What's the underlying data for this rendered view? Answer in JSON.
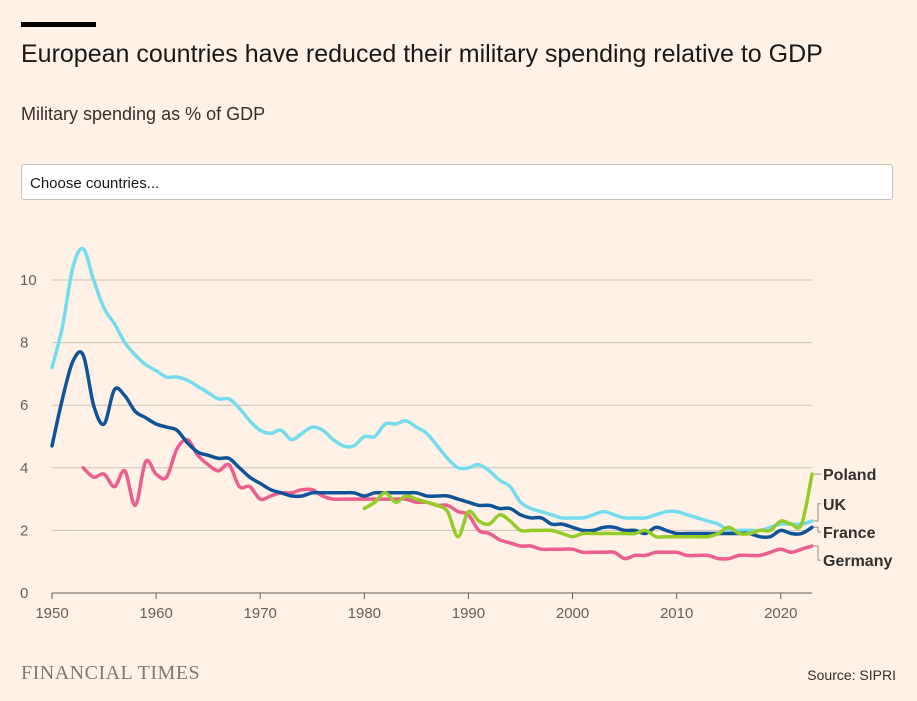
{
  "header": {
    "title": "European countries have reduced their military spending relative to GDP",
    "subtitle": "Military spending as % of GDP"
  },
  "controls": {
    "select_placeholder": "Choose countries..."
  },
  "footer": {
    "brand": "FINANCIAL TIMES",
    "source": "Source: SIPRI"
  },
  "colors": {
    "UK": "#73dcef",
    "France": "#0f5499",
    "Germany": "#eb5e8d",
    "Poland": "#96cc28",
    "background": "#fff1e5",
    "grid": "#ccc1b7"
  },
  "chart_data": {
    "type": "line",
    "xlim": [
      1950,
      2023
    ],
    "ylim": [
      0,
      11
    ],
    "x_ticks": [
      "1950",
      "1960",
      "1970",
      "1980",
      "1990",
      "2000",
      "2010",
      "2020"
    ],
    "y_ticks": [
      "0",
      "2",
      "4",
      "6",
      "8",
      "10"
    ],
    "grid": "horizontal",
    "series": [
      {
        "name": "UK",
        "x": [
          1950,
          1951,
          1952,
          1953,
          1954,
          1955,
          1956,
          1957,
          1958,
          1959,
          1960,
          1961,
          1962,
          1963,
          1964,
          1965,
          1966,
          1967,
          1968,
          1969,
          1970,
          1971,
          1972,
          1973,
          1974,
          1975,
          1976,
          1977,
          1978,
          1979,
          1980,
          1981,
          1982,
          1983,
          1984,
          1985,
          1986,
          1987,
          1988,
          1989,
          1990,
          1991,
          1992,
          1993,
          1994,
          1995,
          1996,
          1997,
          1998,
          1999,
          2000,
          2001,
          2002,
          2003,
          2004,
          2005,
          2006,
          2007,
          2008,
          2009,
          2010,
          2011,
          2012,
          2013,
          2014,
          2015,
          2016,
          2017,
          2018,
          2019,
          2020,
          2021,
          2022,
          2023
        ],
        "values": [
          7.2,
          8.5,
          10.4,
          11.0,
          10.0,
          9.1,
          8.6,
          8.0,
          7.6,
          7.3,
          7.1,
          6.9,
          6.9,
          6.8,
          6.6,
          6.4,
          6.2,
          6.2,
          5.9,
          5.5,
          5.2,
          5.1,
          5.2,
          4.9,
          5.1,
          5.3,
          5.2,
          4.9,
          4.7,
          4.7,
          5.0,
          5.0,
          5.4,
          5.4,
          5.5,
          5.3,
          5.1,
          4.7,
          4.3,
          4.0,
          4.0,
          4.1,
          3.9,
          3.6,
          3.4,
          2.9,
          2.7,
          2.6,
          2.5,
          2.4,
          2.4,
          2.4,
          2.5,
          2.6,
          2.5,
          2.4,
          2.4,
          2.4,
          2.5,
          2.6,
          2.6,
          2.5,
          2.4,
          2.3,
          2.2,
          2.0,
          2.0,
          2.0,
          2.0,
          2.1,
          2.2,
          2.2,
          2.2,
          2.3
        ]
      },
      {
        "name": "France",
        "x": [
          1950,
          1951,
          1952,
          1953,
          1954,
          1955,
          1956,
          1957,
          1958,
          1959,
          1960,
          1961,
          1962,
          1963,
          1964,
          1965,
          1966,
          1967,
          1968,
          1969,
          1970,
          1971,
          1972,
          1973,
          1974,
          1975,
          1976,
          1977,
          1978,
          1979,
          1980,
          1981,
          1982,
          1983,
          1984,
          1985,
          1986,
          1987,
          1988,
          1989,
          1990,
          1991,
          1992,
          1993,
          1994,
          1995,
          1996,
          1997,
          1998,
          1999,
          2000,
          2001,
          2002,
          2003,
          2004,
          2005,
          2006,
          2007,
          2008,
          2009,
          2010,
          2011,
          2012,
          2013,
          2014,
          2015,
          2016,
          2017,
          2018,
          2019,
          2020,
          2021,
          2022,
          2023
        ],
        "values": [
          4.7,
          6.2,
          7.4,
          7.6,
          6.0,
          5.4,
          6.5,
          6.3,
          5.8,
          5.6,
          5.4,
          5.3,
          5.2,
          4.8,
          4.5,
          4.4,
          4.3,
          4.3,
          4.0,
          3.7,
          3.5,
          3.3,
          3.2,
          3.1,
          3.1,
          3.2,
          3.2,
          3.2,
          3.2,
          3.2,
          3.1,
          3.2,
          3.2,
          3.2,
          3.2,
          3.2,
          3.1,
          3.1,
          3.1,
          3.0,
          2.9,
          2.8,
          2.8,
          2.7,
          2.7,
          2.5,
          2.4,
          2.4,
          2.2,
          2.2,
          2.1,
          2.0,
          2.0,
          2.1,
          2.1,
          2.0,
          2.0,
          1.9,
          2.1,
          2.0,
          1.9,
          1.9,
          1.9,
          1.9,
          1.9,
          1.9,
          1.9,
          1.9,
          1.8,
          1.8,
          2.0,
          1.9,
          1.9,
          2.1
        ]
      },
      {
        "name": "Germany",
        "x": [
          1953,
          1954,
          1955,
          1956,
          1957,
          1958,
          1959,
          1960,
          1961,
          1962,
          1963,
          1964,
          1965,
          1966,
          1967,
          1968,
          1969,
          1970,
          1971,
          1972,
          1973,
          1974,
          1975,
          1976,
          1977,
          1978,
          1979,
          1980,
          1981,
          1982,
          1983,
          1984,
          1985,
          1986,
          1987,
          1988,
          1989,
          1990,
          1991,
          1992,
          1993,
          1994,
          1995,
          1996,
          1997,
          1998,
          1999,
          2000,
          2001,
          2002,
          2003,
          2004,
          2005,
          2006,
          2007,
          2008,
          2009,
          2010,
          2011,
          2012,
          2013,
          2014,
          2015,
          2016,
          2017,
          2018,
          2019,
          2020,
          2021,
          2022,
          2023
        ],
        "values": [
          4.0,
          3.7,
          3.8,
          3.4,
          3.9,
          2.8,
          4.2,
          3.8,
          3.7,
          4.6,
          4.9,
          4.4,
          4.1,
          3.9,
          4.1,
          3.4,
          3.4,
          3.0,
          3.1,
          3.2,
          3.2,
          3.3,
          3.3,
          3.1,
          3.0,
          3.0,
          3.0,
          3.0,
          3.0,
          3.0,
          3.0,
          3.0,
          2.9,
          2.9,
          2.8,
          2.8,
          2.6,
          2.5,
          2.0,
          1.9,
          1.7,
          1.6,
          1.5,
          1.5,
          1.4,
          1.4,
          1.4,
          1.4,
          1.3,
          1.3,
          1.3,
          1.3,
          1.1,
          1.2,
          1.2,
          1.3,
          1.3,
          1.3,
          1.2,
          1.2,
          1.2,
          1.1,
          1.1,
          1.2,
          1.2,
          1.2,
          1.3,
          1.4,
          1.3,
          1.4,
          1.5
        ]
      },
      {
        "name": "Poland",
        "x": [
          1980,
          1981,
          1982,
          1983,
          1984,
          1985,
          1986,
          1987,
          1988,
          1989,
          1990,
          1991,
          1992,
          1993,
          1994,
          1995,
          1996,
          1997,
          1998,
          1999,
          2000,
          2001,
          2002,
          2003,
          2004,
          2005,
          2006,
          2007,
          2008,
          2009,
          2010,
          2011,
          2012,
          2013,
          2014,
          2015,
          2016,
          2017,
          2018,
          2019,
          2020,
          2021,
          2022,
          2023
        ],
        "values": [
          2.7,
          2.9,
          3.2,
          2.9,
          3.1,
          3.0,
          2.9,
          2.8,
          2.6,
          1.8,
          2.6,
          2.3,
          2.2,
          2.5,
          2.3,
          2.0,
          2.0,
          2.0,
          2.0,
          1.9,
          1.8,
          1.9,
          1.9,
          1.9,
          1.9,
          1.9,
          1.9,
          2.0,
          1.8,
          1.8,
          1.8,
          1.8,
          1.8,
          1.8,
          1.9,
          2.1,
          1.9,
          1.9,
          2.0,
          2.0,
          2.3,
          2.2,
          2.2,
          3.8
        ]
      }
    ],
    "draw_order": [
      "UK",
      "Germany",
      "France",
      "Poland"
    ],
    "end_labels": [
      "Poland",
      "UK",
      "France",
      "Germany"
    ]
  }
}
